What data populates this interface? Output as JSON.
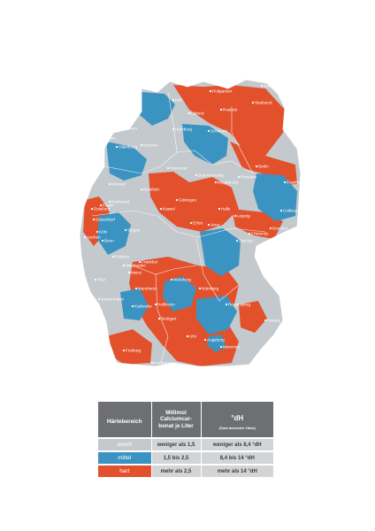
{
  "colors": {
    "weich": "#c4c9cd",
    "mittel": "#3b93c1",
    "hart": "#e2512c",
    "header": "#6d6f72",
    "value_cell": "#d2d4d6",
    "border": "#ffffff"
  },
  "cities": [
    {
      "id": "city-puttgarden",
      "name": "Puttgarden"
    },
    {
      "id": "city-sassnitz",
      "name": "Sassnitz"
    },
    {
      "id": "city-kiel",
      "name": "Kiel"
    },
    {
      "id": "city-luebeck",
      "name": "Lübeck"
    },
    {
      "id": "city-rostock",
      "name": "Rostock"
    },
    {
      "id": "city-stralsund",
      "name": "Stralsund"
    },
    {
      "id": "city-wilhelmshaven",
      "name": "Wilhelmshaven"
    },
    {
      "id": "city-emden",
      "name": "Emden"
    },
    {
      "id": "city-hamburg",
      "name": "Hamburg"
    },
    {
      "id": "city-schwerin",
      "name": "Schwerin"
    },
    {
      "id": "city-bremen",
      "name": "Bremen"
    },
    {
      "id": "city-oldenburg",
      "name": "Oldenburg"
    },
    {
      "id": "city-hannover",
      "name": "Hannover"
    },
    {
      "id": "city-braunschweig",
      "name": "Braunschweig"
    },
    {
      "id": "city-magdeburg",
      "name": "Magdeburg"
    },
    {
      "id": "city-berlin",
      "name": "Berlin"
    },
    {
      "id": "city-potsdam",
      "name": "Potsdam"
    },
    {
      "id": "city-frankfurt-oder",
      "name": "Frankfurt (Oder)"
    },
    {
      "id": "city-muenster",
      "name": "Münster"
    },
    {
      "id": "city-bielefeld",
      "name": "Bielefeld"
    },
    {
      "id": "city-kassel",
      "name": "Kassel"
    },
    {
      "id": "city-goettingen",
      "name": "Göttingen"
    },
    {
      "id": "city-halle",
      "name": "Halle"
    },
    {
      "id": "city-leipzig",
      "name": "Leipzig"
    },
    {
      "id": "city-dresden",
      "name": "Dresden"
    },
    {
      "id": "city-cottbus",
      "name": "Cottbus"
    },
    {
      "id": "city-dortmund",
      "name": "Dortmund"
    },
    {
      "id": "city-duisburg",
      "name": "Duisburg"
    },
    {
      "id": "city-essen",
      "name": "Essen"
    },
    {
      "id": "city-duesseldorf",
      "name": "Düsseldorf"
    },
    {
      "id": "city-koeln",
      "name": "Köln"
    },
    {
      "id": "city-aachen",
      "name": "Aachen"
    },
    {
      "id": "city-bonn",
      "name": "Bonn"
    },
    {
      "id": "city-siegen",
      "name": "Siegen"
    },
    {
      "id": "city-erfurt",
      "name": "Erfurt"
    },
    {
      "id": "city-jena",
      "name": "Jena"
    },
    {
      "id": "city-chemnitz",
      "name": "Chemnitz"
    },
    {
      "id": "city-zwickau",
      "name": "Zwickau"
    },
    {
      "id": "city-koblenz",
      "name": "Koblenz"
    },
    {
      "id": "city-frankfurt",
      "name": "Frankfurt"
    },
    {
      "id": "city-wiesbaden",
      "name": "Wiesbaden"
    },
    {
      "id": "city-mainz",
      "name": "Mainz"
    },
    {
      "id": "city-trier",
      "name": "Trier"
    },
    {
      "id": "city-wuerzburg",
      "name": "Würzburg"
    },
    {
      "id": "city-mannheim",
      "name": "Mannheim"
    },
    {
      "id": "city-nuernberg",
      "name": "Nürnberg"
    },
    {
      "id": "city-regensburg",
      "name": "Regensburg"
    },
    {
      "id": "city-saarbruecken",
      "name": "Saarbrücken"
    },
    {
      "id": "city-karlsruhe",
      "name": "Karlsruhe"
    },
    {
      "id": "city-heilbronn",
      "name": "Heilbronn"
    },
    {
      "id": "city-stuttgart",
      "name": "Stuttgart"
    },
    {
      "id": "city-ulm",
      "name": "Ulm"
    },
    {
      "id": "city-augsburg",
      "name": "Augsburg"
    },
    {
      "id": "city-muenchen",
      "name": "München"
    },
    {
      "id": "city-passau",
      "name": "Passau"
    },
    {
      "id": "city-freiburg",
      "name": "Freiburg"
    },
    {
      "id": "city-konstanz",
      "name": "Konstanz"
    }
  ],
  "legend": {
    "header": {
      "col1": "Härtebereich",
      "col2_line1": "Millimol",
      "col2_line2": "Calciumcar-",
      "col2_line3": "bonat je Liter",
      "col3_main": "°dH",
      "col3_sub": "(Grad deutscher Härte)"
    },
    "rows": [
      {
        "label": "weich",
        "millimol": "weniger als 1,5",
        "dh": "weniger als 8,4 °dH"
      },
      {
        "label": "mittel",
        "millimol": "1,5 bis 2,5",
        "dh": "8,4 bis 14 °dH"
      },
      {
        "label": "hart",
        "millimol": "mehr als 2,5",
        "dh": "mehr als 14 °dH"
      }
    ]
  }
}
